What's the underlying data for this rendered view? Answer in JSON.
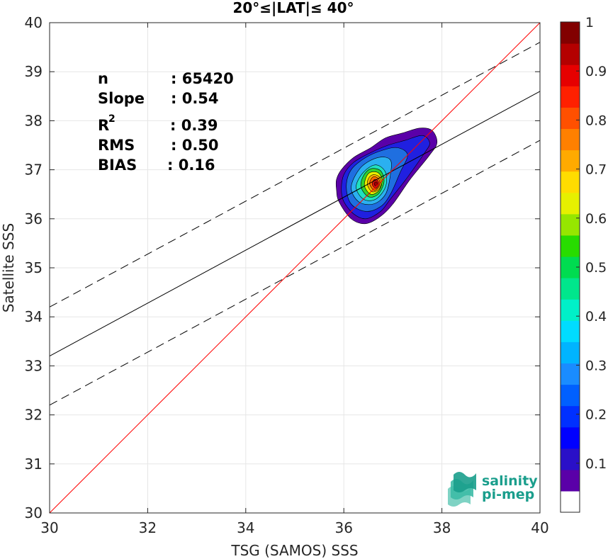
{
  "chart_data": {
    "type": "heatmap",
    "title": "20°≤|LAT|≤ 40°",
    "xlabel": "TSG (SAMOS) SSS",
    "ylabel": "Satellite SSS",
    "xlim": [
      30,
      40
    ],
    "ylim": [
      30,
      40
    ],
    "xticks": [
      30,
      32,
      34,
      36,
      38,
      40
    ],
    "yticks": [
      30,
      31,
      32,
      33,
      34,
      35,
      36,
      37,
      38,
      39,
      40
    ],
    "grid": true,
    "stats": {
      "n_label": "n",
      "n_value": ": 65420",
      "slope_label": "Slope",
      "slope_value": ": 0.54",
      "r2_label": "R",
      "r2_sup": "2",
      "r2_value": ": 0.39",
      "rms_label": "RMS",
      "rms_value": ": 0.50",
      "bias_label": "BIAS",
      "bias_value": ": 0.16"
    },
    "lines": {
      "identity": {
        "x": [
          30,
          40
        ],
        "y": [
          30,
          40
        ],
        "color": "#ff0000"
      },
      "fit": {
        "x": [
          30,
          40
        ],
        "y": [
          33.2,
          38.6
        ],
        "color": "#000000"
      },
      "upper": {
        "x": [
          30,
          40
        ],
        "y": [
          34.2,
          39.6
        ],
        "color": "#000000",
        "dash": true
      },
      "lower": {
        "x": [
          30,
          40
        ],
        "y": [
          32.2,
          37.6
        ],
        "color": "#000000",
        "dash": true
      }
    },
    "density_peak": {
      "x": 36.65,
      "y": 36.7
    },
    "contours": [
      {
        "level": 0.05,
        "color": "#5a00a8",
        "pts": [
          [
            35.85,
            36.6
          ],
          [
            35.9,
            36.35
          ],
          [
            36.15,
            36.0
          ],
          [
            36.45,
            35.9
          ],
          [
            36.75,
            36.05
          ],
          [
            37.0,
            36.3
          ],
          [
            37.35,
            36.8
          ],
          [
            37.75,
            37.3
          ],
          [
            37.9,
            37.55
          ],
          [
            37.8,
            37.8
          ],
          [
            37.55,
            37.85
          ],
          [
            37.2,
            37.75
          ],
          [
            36.85,
            37.65
          ],
          [
            36.55,
            37.45
          ],
          [
            36.2,
            37.25
          ],
          [
            35.95,
            37.0
          ],
          [
            35.85,
            36.8
          ]
        ]
      },
      {
        "level": 0.15,
        "color": "#2020e0",
        "pts": [
          [
            35.95,
            36.6
          ],
          [
            36.0,
            36.35
          ],
          [
            36.2,
            36.1
          ],
          [
            36.45,
            36.0
          ],
          [
            36.75,
            36.15
          ],
          [
            36.95,
            36.4
          ],
          [
            37.3,
            36.85
          ],
          [
            37.65,
            37.35
          ],
          [
            37.75,
            37.55
          ],
          [
            37.6,
            37.7
          ],
          [
            37.25,
            37.6
          ],
          [
            36.9,
            37.5
          ],
          [
            36.55,
            37.35
          ],
          [
            36.2,
            37.15
          ],
          [
            36.0,
            36.9
          ]
        ]
      },
      {
        "level": 0.25,
        "color": "#1f6fe0",
        "pts": [
          [
            36.05,
            36.65
          ],
          [
            36.15,
            36.3
          ],
          [
            36.45,
            36.15
          ],
          [
            36.75,
            36.25
          ],
          [
            36.95,
            36.5
          ],
          [
            37.15,
            36.95
          ],
          [
            37.3,
            37.3
          ],
          [
            37.1,
            37.45
          ],
          [
            36.8,
            37.4
          ],
          [
            36.45,
            37.25
          ],
          [
            36.15,
            37.0
          ]
        ]
      },
      {
        "level": 0.35,
        "color": "#2bb0f0",
        "pts": [
          [
            36.15,
            36.65
          ],
          [
            36.3,
            36.35
          ],
          [
            36.6,
            36.3
          ],
          [
            36.85,
            36.5
          ],
          [
            36.95,
            36.9
          ],
          [
            36.95,
            37.2
          ],
          [
            36.7,
            37.25
          ],
          [
            36.35,
            37.05
          ]
        ]
      },
      {
        "level": 0.45,
        "color": "#20e0c0",
        "pts": [
          [
            36.25,
            36.65
          ],
          [
            36.4,
            36.4
          ],
          [
            36.65,
            36.4
          ],
          [
            36.85,
            36.65
          ],
          [
            36.85,
            36.95
          ],
          [
            36.65,
            37.1
          ],
          [
            36.4,
            36.95
          ]
        ]
      },
      {
        "level": 0.55,
        "color": "#30d030",
        "pts": [
          [
            36.35,
            36.65
          ],
          [
            36.5,
            36.45
          ],
          [
            36.7,
            36.5
          ],
          [
            36.82,
            36.75
          ],
          [
            36.75,
            36.98
          ],
          [
            36.55,
            37.02
          ],
          [
            36.4,
            36.88
          ]
        ]
      },
      {
        "level": 0.65,
        "color": "#e8f000",
        "pts": [
          [
            36.42,
            36.68
          ],
          [
            36.55,
            36.5
          ],
          [
            36.72,
            36.58
          ],
          [
            36.78,
            36.8
          ],
          [
            36.68,
            36.95
          ],
          [
            36.5,
            36.92
          ]
        ]
      },
      {
        "level": 0.72,
        "color": "#ffb000",
        "pts": [
          [
            36.48,
            36.7
          ],
          [
            36.58,
            36.55
          ],
          [
            36.73,
            36.62
          ],
          [
            36.75,
            36.82
          ],
          [
            36.63,
            36.9
          ],
          [
            36.52,
            36.85
          ]
        ]
      },
      {
        "level": 0.8,
        "color": "#ff6a00",
        "pts": [
          [
            36.53,
            36.7
          ],
          [
            36.62,
            36.58
          ],
          [
            36.72,
            36.66
          ],
          [
            36.72,
            36.8
          ],
          [
            36.62,
            36.86
          ],
          [
            36.55,
            36.8
          ]
        ]
      },
      {
        "level": 0.9,
        "color": "#e01010",
        "pts": [
          [
            36.58,
            36.7
          ],
          [
            36.65,
            36.62
          ],
          [
            36.71,
            36.69
          ],
          [
            36.69,
            36.78
          ],
          [
            36.62,
            36.8
          ]
        ]
      },
      {
        "level": 0.97,
        "color": "#a00000",
        "pts": [
          [
            36.62,
            36.7
          ],
          [
            36.66,
            36.66
          ],
          [
            36.69,
            36.7
          ],
          [
            36.67,
            36.75
          ],
          [
            36.63,
            36.74
          ]
        ]
      }
    ],
    "colorbar": {
      "colors": [
        "#ffffff",
        "#5a00a8",
        "#2a10c8",
        "#0000ff",
        "#0030ff",
        "#0060ff",
        "#1a8cff",
        "#00b4ff",
        "#00dcff",
        "#00f0c8",
        "#00e68c",
        "#00dc50",
        "#28dc00",
        "#96e600",
        "#e6f000",
        "#ffdc00",
        "#ffaa00",
        "#ff8000",
        "#ff5000",
        "#ff2000",
        "#e60000",
        "#b40000",
        "#820000"
      ],
      "ticks": [
        0.1,
        0.2,
        0.3,
        0.4,
        0.5,
        0.6,
        0.7,
        0.8,
        0.9,
        1
      ],
      "tick_labels": [
        "0.1",
        "0.2",
        "0.3",
        "0.4",
        "0.5",
        "0.6",
        "0.7",
        "0.8",
        "0.9",
        "1"
      ],
      "range": [
        0,
        1
      ]
    },
    "logo": {
      "line1": "salinity",
      "line2": "pi-mep",
      "color": "#1a9e8c"
    }
  }
}
